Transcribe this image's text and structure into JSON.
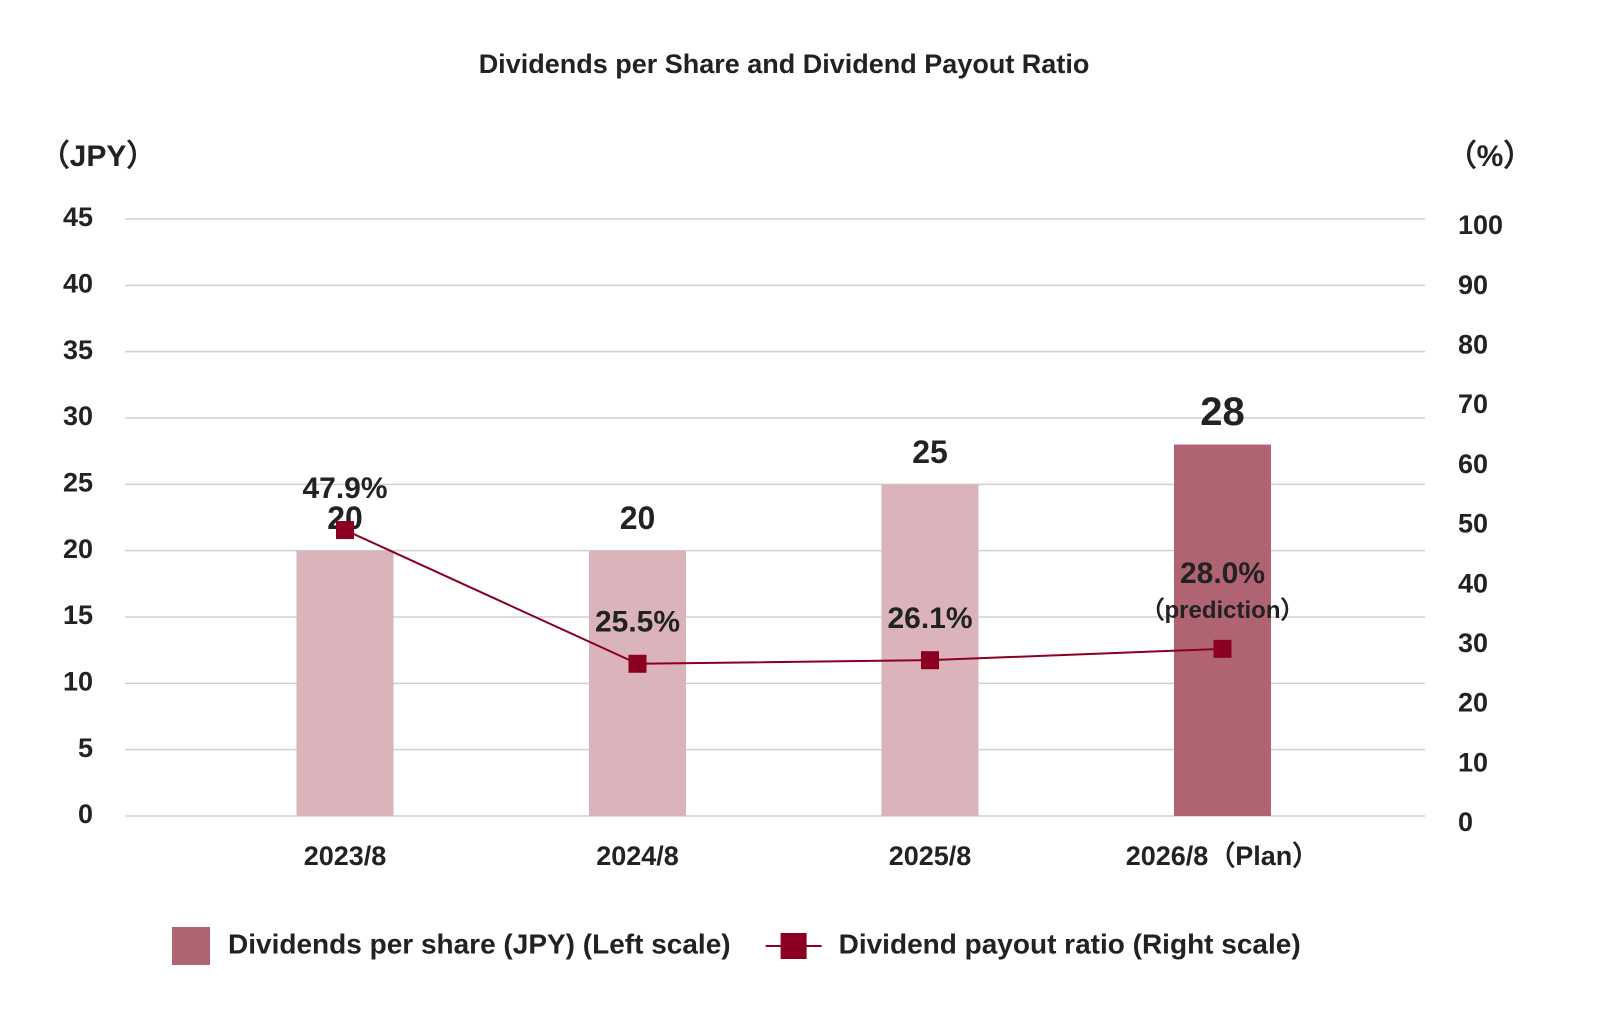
{
  "chart_data": {
    "type": "bar",
    "title": "Dividends per Share and Dividend Payout Ratio",
    "y_label": "（JPY）",
    "y2_label": "（%）",
    "categories": [
      "2023/8",
      "2024/8",
      "2025/8",
      "2026/8（Plan）"
    ],
    "series": [
      {
        "name": "Dividends per share (JPY) (Left scale)",
        "type": "bar",
        "color": "#b06472",
        "colors": [
          "#dbb3ba",
          "#dbb3ba",
          "#dbb3ba",
          "#b06472"
        ],
        "values": [
          20,
          20,
          25,
          28
        ]
      },
      {
        "name": "Dividend payout ratio (Right scale)",
        "type": "line",
        "axis": "y2",
        "color": "#8b0020",
        "values": [
          47.9,
          25.5,
          26.1,
          28.0
        ],
        "value_labels": [
          "47.9%",
          "25.5%",
          "26.1%",
          "28.0%"
        ]
      }
    ],
    "annotation": "（prediction）",
    "ylim": [
      0,
      45
    ],
    "yticks": [
      0,
      5,
      10,
      15,
      20,
      25,
      30,
      35,
      40,
      45
    ],
    "y2lim": [
      0,
      100
    ],
    "y2ticks": [
      0,
      10,
      20,
      30,
      40,
      50,
      60,
      70,
      80,
      90,
      100
    ],
    "grid": true,
    "legend": "bottom"
  }
}
